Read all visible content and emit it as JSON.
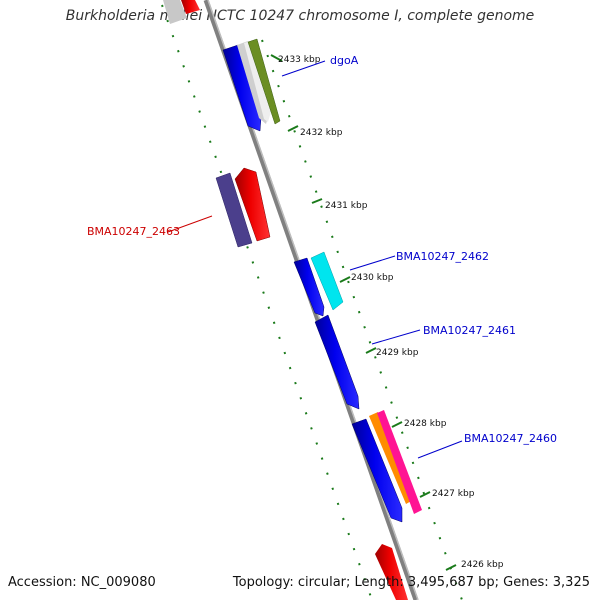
{
  "title": "Burkholderia mallei NCTC 10247 chromosome I, complete genome",
  "footer": {
    "accession": "Accession: NC_009080",
    "topology": "Topology: circular; Length: 3,495,687 bp; Genes: 3,325"
  },
  "ruler": [
    {
      "label": "2433 kbp"
    },
    {
      "label": "2432 kbp"
    },
    {
      "label": "2431 kbp"
    },
    {
      "label": "2430 kbp"
    },
    {
      "label": "2429 kbp"
    },
    {
      "label": "2428 kbp"
    },
    {
      "label": "2427 kbp"
    },
    {
      "label": "2426 kbp"
    }
  ],
  "gene_labels": [
    {
      "name": "dgoA",
      "color": "#0000cc"
    },
    {
      "name": "BMA10247_2463",
      "color": "#cc0000"
    },
    {
      "name": "BMA10247_2462",
      "color": "#0000cc"
    },
    {
      "name": "BMA10247_2461",
      "color": "#0000cc"
    },
    {
      "name": "BMA10247_2460",
      "color": "#0000cc"
    }
  ],
  "colors": {
    "backbone": "#808080",
    "forward_gene": "#0000ee",
    "reverse_gene": "#ee0000",
    "tick": "#1a7a1a",
    "accent_cyan": "#00e5ee",
    "accent_olive": "#6b8e23",
    "accent_purple": "#4b3f8c",
    "accent_orange": "#ff8c00",
    "accent_magenta": "#ff1493"
  }
}
